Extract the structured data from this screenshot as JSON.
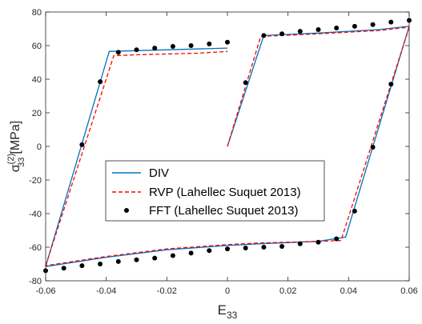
{
  "chart_data": {
    "type": "line",
    "xlabel": "E",
    "xlabel_sub": "33",
    "ylabel_sigma": "σ",
    "ylabel_sup": "(2)",
    "ylabel_sub": "33",
    "ylabel_unit": "[MPa]",
    "xlim": [
      -0.06,
      0.06
    ],
    "ylim": [
      -80,
      80
    ],
    "xticks": [
      -0.06,
      -0.04,
      -0.02,
      0,
      0.02,
      0.04,
      0.06
    ],
    "xtick_labels": [
      "-0.06",
      "-0.04",
      "-0.02",
      "0",
      "0.02",
      "0.04",
      "0.06"
    ],
    "yticks": [
      -80,
      -60,
      -40,
      -20,
      0,
      20,
      40,
      60,
      80
    ],
    "ytick_labels": [
      "-80",
      "-60",
      "-40",
      "-20",
      "0",
      "20",
      "40",
      "60",
      "80"
    ],
    "grid": false,
    "legend_position": "lower-left",
    "series": [
      {
        "name": "DIV",
        "style": "solid",
        "color": "#0072BD",
        "segments": [
          [
            [
              0,
              0
            ],
            [
              0.012,
              66
            ],
            [
              0.03,
              67.5
            ],
            [
              0.05,
              69.5
            ],
            [
              0.06,
              71.5
            ]
          ],
          [
            [
              0.06,
              71.5
            ],
            [
              0.039,
              -54
            ],
            [
              0.03,
              -56.5
            ],
            [
              0.01,
              -58
            ],
            [
              0,
              -59
            ],
            [
              -0.02,
              -61.5
            ],
            [
              -0.04,
              -66
            ],
            [
              -0.06,
              -71.5
            ]
          ],
          [
            [
              -0.06,
              -71.5
            ],
            [
              -0.039,
              56.5
            ],
            [
              -0.03,
              57
            ],
            [
              -0.01,
              58
            ],
            [
              0,
              58.5
            ]
          ]
        ]
      },
      {
        "name": "RVP (Lahellec Suquet 2013)",
        "style": "dashed",
        "color": "#FF0000",
        "segments": [
          [
            [
              0,
              0
            ],
            [
              0.011,
              65.5
            ],
            [
              0.03,
              67
            ],
            [
              0.05,
              69
            ],
            [
              0.06,
              71
            ]
          ],
          [
            [
              0.06,
              71
            ],
            [
              0.0375,
              -56
            ],
            [
              0.03,
              -56.5
            ],
            [
              0.01,
              -57.5
            ],
            [
              0,
              -58.5
            ],
            [
              -0.02,
              -61
            ],
            [
              -0.04,
              -65.5
            ],
            [
              -0.06,
              -71
            ]
          ],
          [
            [
              -0.06,
              -71
            ],
            [
              -0.0375,
              54
            ],
            [
              -0.03,
              54.5
            ],
            [
              -0.01,
              55.5
            ],
            [
              0,
              56.5
            ]
          ]
        ]
      },
      {
        "name": "FFT (Lahellec Suquet 2013)",
        "style": "markers",
        "color": "#000000",
        "points": [
          [
            0.006,
            38
          ],
          [
            0.012,
            66
          ],
          [
            0.018,
            67
          ],
          [
            0.024,
            68.5
          ],
          [
            0.03,
            69.5
          ],
          [
            0.036,
            70.5
          ],
          [
            0.042,
            71.5
          ],
          [
            0.048,
            72.5
          ],
          [
            0.054,
            74
          ],
          [
            0.06,
            75
          ],
          [
            0.054,
            37
          ],
          [
            0.048,
            -0.5
          ],
          [
            0.042,
            -38.5
          ],
          [
            0.036,
            -55
          ],
          [
            0.03,
            -57
          ],
          [
            0.024,
            -58
          ],
          [
            0.018,
            -59.5
          ],
          [
            0.012,
            -60
          ],
          [
            0.006,
            -60.5
          ],
          [
            0,
            -61
          ],
          [
            -0.006,
            -62
          ],
          [
            -0.012,
            -63.5
          ],
          [
            -0.018,
            -65
          ],
          [
            -0.024,
            -66.5
          ],
          [
            -0.03,
            -67.5
          ],
          [
            -0.036,
            -68.5
          ],
          [
            -0.042,
            -70
          ],
          [
            -0.048,
            -71
          ],
          [
            -0.054,
            -72.5
          ],
          [
            -0.06,
            -74
          ],
          [
            -0.048,
            1
          ],
          [
            -0.042,
            38.5
          ],
          [
            -0.036,
            56
          ],
          [
            -0.03,
            57.5
          ],
          [
            -0.024,
            58.5
          ],
          [
            -0.018,
            59.5
          ],
          [
            -0.012,
            60
          ],
          [
            -0.006,
            61
          ],
          [
            0,
            62
          ]
        ]
      }
    ]
  }
}
